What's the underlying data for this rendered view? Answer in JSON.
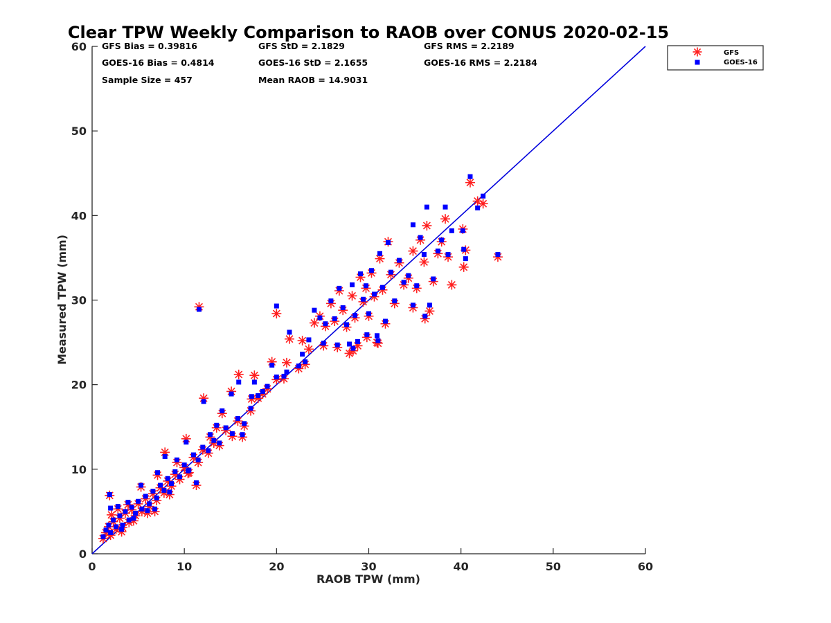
{
  "colors": {
    "gfs": "#ff1f1f",
    "goes16": "#0000ff",
    "reference_line": "#0000dd",
    "axis": "#262626"
  },
  "stats": [
    {
      "id": "gfs-bias",
      "text": "GFS Bias = 0.39816"
    },
    {
      "id": "gfs-std",
      "text": "GFS StD = 2.1829"
    },
    {
      "id": "gfs-rms",
      "text": "GFS RMS = 2.2189"
    },
    {
      "id": "goes16-bias",
      "text": "GOES-16 Bias = 0.4814"
    },
    {
      "id": "goes16-std",
      "text": "GOES-16 StD = 2.1655"
    },
    {
      "id": "goes16-rms",
      "text": "GOES-16 RMS = 2.2184"
    },
    {
      "id": "sample-size",
      "text": "Sample Size = 457"
    },
    {
      "id": "mean-raob",
      "text": "Mean RAOB = 14.9031"
    }
  ],
  "chart_data": {
    "type": "scatter",
    "title": "Clear TPW Weekly Comparison to RAOB over CONUS 2020-02-15",
    "xlabel": "RAOB TPW (mm)",
    "ylabel": "Measured TPW (mm)",
    "xlim": [
      0,
      60
    ],
    "ylim": [
      0,
      60
    ],
    "xticks": [
      0,
      10,
      20,
      30,
      40,
      50,
      60
    ],
    "yticks": [
      0,
      10,
      20,
      30,
      40,
      50,
      60
    ],
    "grid": false,
    "legend_position": "top-right outside",
    "reference_line": {
      "name": "1:1",
      "points": [
        [
          0,
          0
        ],
        [
          60,
          60
        ]
      ]
    },
    "series": [
      {
        "name": "GFS",
        "marker": "asterisk",
        "points": [
          [
            1.2,
            1.8
          ],
          [
            1.5,
            2.5
          ],
          [
            1.8,
            3.2
          ],
          [
            2.0,
            2.2
          ],
          [
            2.3,
            3.8
          ],
          [
            2.6,
            2.9
          ],
          [
            3.0,
            4.2
          ],
          [
            3.3,
            3.1
          ],
          [
            3.6,
            4.8
          ],
          [
            4.0,
            3.7
          ],
          [
            4.3,
            5.2
          ],
          [
            4.7,
            4.5
          ],
          [
            5.0,
            5.9
          ],
          [
            5.4,
            5.0
          ],
          [
            5.8,
            6.5
          ],
          [
            6.2,
            5.6
          ],
          [
            6.6,
            7.1
          ],
          [
            7.0,
            6.3
          ],
          [
            7.4,
            7.8
          ],
          [
            7.8,
            7.2
          ],
          [
            8.2,
            8.6
          ],
          [
            8.6,
            8.0
          ],
          [
            9.0,
            9.4
          ],
          [
            9.5,
            8.8
          ],
          [
            10.0,
            10.2
          ],
          [
            10.5,
            9.6
          ],
          [
            11.0,
            11.4
          ],
          [
            11.5,
            10.8
          ],
          [
            12.0,
            12.3
          ],
          [
            12.6,
            11.9
          ],
          [
            13.2,
            13.1
          ],
          [
            13.8,
            12.8
          ],
          [
            14.5,
            14.6
          ],
          [
            15.2,
            13.9
          ],
          [
            15.8,
            15.7
          ],
          [
            16.5,
            15.1
          ],
          [
            17.2,
            16.9
          ],
          [
            18.0,
            18.4
          ],
          [
            19.0,
            19.5
          ],
          [
            20.0,
            20.6
          ],
          [
            1.9,
            6.9
          ],
          [
            2.1,
            4.6
          ],
          [
            2.8,
            5.3
          ],
          [
            3.2,
            2.6
          ],
          [
            3.9,
            5.8
          ],
          [
            4.5,
            3.9
          ],
          [
            5.3,
            7.9
          ],
          [
            6.0,
            4.8
          ],
          [
            6.8,
            5.0
          ],
          [
            7.1,
            9.3
          ],
          [
            7.9,
            12.0
          ],
          [
            8.4,
            7.0
          ],
          [
            9.2,
            10.8
          ],
          [
            10.2,
            13.6
          ],
          [
            10.4,
            9.5
          ],
          [
            11.3,
            8.1
          ],
          [
            11.6,
            29.2
          ],
          [
            12.1,
            18.4
          ],
          [
            12.8,
            13.8
          ],
          [
            13.5,
            14.9
          ],
          [
            14.1,
            16.6
          ],
          [
            15.1,
            19.2
          ],
          [
            15.9,
            21.2
          ],
          [
            16.3,
            13.8
          ],
          [
            17.3,
            18.3
          ],
          [
            17.6,
            21.1
          ],
          [
            18.5,
            18.9
          ],
          [
            19.5,
            22.7
          ],
          [
            20.0,
            28.4
          ],
          [
            20.8,
            20.7
          ],
          [
            21.1,
            22.6
          ],
          [
            21.4,
            25.4
          ],
          [
            22.8,
            25.2
          ],
          [
            23.1,
            22.4
          ],
          [
            23.5,
            24.2
          ],
          [
            24.1,
            27.3
          ],
          [
            24.7,
            28.1
          ],
          [
            25.3,
            26.9
          ],
          [
            25.9,
            29.6
          ],
          [
            26.3,
            27.5
          ],
          [
            26.8,
            31.1
          ],
          [
            27.2,
            28.8
          ],
          [
            27.6,
            26.8
          ],
          [
            27.9,
            23.7
          ],
          [
            28.2,
            30.5
          ],
          [
            28.5,
            27.9
          ],
          [
            28.8,
            24.6
          ],
          [
            29.1,
            32.7
          ],
          [
            29.4,
            29.8
          ],
          [
            29.7,
            31.4
          ],
          [
            30.0,
            28.1
          ],
          [
            30.3,
            33.2
          ],
          [
            30.6,
            30.4
          ],
          [
            30.9,
            25.0
          ],
          [
            31.2,
            34.9
          ],
          [
            31.5,
            31.2
          ],
          [
            31.8,
            27.2
          ],
          [
            32.1,
            36.9
          ],
          [
            32.4,
            33.0
          ],
          [
            32.8,
            29.6
          ],
          [
            33.3,
            34.4
          ],
          [
            33.8,
            31.8
          ],
          [
            34.3,
            32.6
          ],
          [
            34.8,
            35.8
          ],
          [
            35.2,
            31.4
          ],
          [
            35.6,
            37.1
          ],
          [
            36.0,
            34.5
          ],
          [
            36.3,
            38.8
          ],
          [
            36.6,
            28.7
          ],
          [
            37.0,
            32.2
          ],
          [
            37.5,
            35.5
          ],
          [
            37.9,
            36.9
          ],
          [
            38.3,
            39.6
          ],
          [
            38.6,
            35.1
          ],
          [
            39.0,
            31.8
          ],
          [
            40.2,
            38.4
          ],
          [
            40.3,
            33.9
          ],
          [
            40.5,
            35.9
          ],
          [
            41.0,
            43.9
          ],
          [
            41.8,
            41.7
          ],
          [
            42.4,
            41.4
          ],
          [
            44.0,
            35.1
          ],
          [
            28.3,
            24.0
          ],
          [
            29.8,
            25.6
          ],
          [
            31.0,
            24.9
          ],
          [
            34.8,
            29.1
          ],
          [
            36.1,
            27.8
          ],
          [
            26.6,
            24.4
          ],
          [
            25.1,
            24.6
          ],
          [
            22.4,
            21.9
          ]
        ]
      },
      {
        "name": "GOES-16",
        "marker": "square",
        "points": [
          [
            1.2,
            2.0
          ],
          [
            1.5,
            2.8
          ],
          [
            1.8,
            3.4
          ],
          [
            2.0,
            2.5
          ],
          [
            2.3,
            4.0
          ],
          [
            2.6,
            3.2
          ],
          [
            3.0,
            4.5
          ],
          [
            3.3,
            3.4
          ],
          [
            3.6,
            5.0
          ],
          [
            4.0,
            4.0
          ],
          [
            4.3,
            5.5
          ],
          [
            4.7,
            4.8
          ],
          [
            5.0,
            6.2
          ],
          [
            5.4,
            5.3
          ],
          [
            5.8,
            6.8
          ],
          [
            6.2,
            5.9
          ],
          [
            6.6,
            7.4
          ],
          [
            7.0,
            6.6
          ],
          [
            7.4,
            8.1
          ],
          [
            7.8,
            7.5
          ],
          [
            8.2,
            8.9
          ],
          [
            8.6,
            8.3
          ],
          [
            9.0,
            9.7
          ],
          [
            9.5,
            9.1
          ],
          [
            10.0,
            10.5
          ],
          [
            10.5,
            9.9
          ],
          [
            11.0,
            11.7
          ],
          [
            11.5,
            11.1
          ],
          [
            12.0,
            12.6
          ],
          [
            12.6,
            12.2
          ],
          [
            13.2,
            13.4
          ],
          [
            13.8,
            13.1
          ],
          [
            14.5,
            14.9
          ],
          [
            15.2,
            14.2
          ],
          [
            15.8,
            16.0
          ],
          [
            16.5,
            15.4
          ],
          [
            17.2,
            17.2
          ],
          [
            18.0,
            18.7
          ],
          [
            19.0,
            19.8
          ],
          [
            20.0,
            20.9
          ],
          [
            1.9,
            7.0
          ],
          [
            2.0,
            5.4
          ],
          [
            2.8,
            5.6
          ],
          [
            3.2,
            2.9
          ],
          [
            3.9,
            6.1
          ],
          [
            4.5,
            4.2
          ],
          [
            5.3,
            8.1
          ],
          [
            6.0,
            5.1
          ],
          [
            6.8,
            5.3
          ],
          [
            7.1,
            9.6
          ],
          [
            7.9,
            11.5
          ],
          [
            8.4,
            7.3
          ],
          [
            9.2,
            11.1
          ],
          [
            10.2,
            13.2
          ],
          [
            10.4,
            9.8
          ],
          [
            11.3,
            8.4
          ],
          [
            11.6,
            28.9
          ],
          [
            12.1,
            18.0
          ],
          [
            12.8,
            14.1
          ],
          [
            13.5,
            15.2
          ],
          [
            14.1,
            16.9
          ],
          [
            15.1,
            18.9
          ],
          [
            15.9,
            20.3
          ],
          [
            16.3,
            14.1
          ],
          [
            17.3,
            18.6
          ],
          [
            17.6,
            20.3
          ],
          [
            18.5,
            19.2
          ],
          [
            19.5,
            22.3
          ],
          [
            20.0,
            29.3
          ],
          [
            20.8,
            21.0
          ],
          [
            21.1,
            21.5
          ],
          [
            21.4,
            26.2
          ],
          [
            22.8,
            23.6
          ],
          [
            23.1,
            22.7
          ],
          [
            23.5,
            25.3
          ],
          [
            24.1,
            28.8
          ],
          [
            24.7,
            27.9
          ],
          [
            25.3,
            27.2
          ],
          [
            25.9,
            29.9
          ],
          [
            26.3,
            27.8
          ],
          [
            26.8,
            31.4
          ],
          [
            27.2,
            29.1
          ],
          [
            27.6,
            27.1
          ],
          [
            27.9,
            24.8
          ],
          [
            28.2,
            31.8
          ],
          [
            28.5,
            28.2
          ],
          [
            28.8,
            25.1
          ],
          [
            29.1,
            33.1
          ],
          [
            29.4,
            30.1
          ],
          [
            29.7,
            31.7
          ],
          [
            30.0,
            28.4
          ],
          [
            30.3,
            33.5
          ],
          [
            30.6,
            30.7
          ],
          [
            30.9,
            25.8
          ],
          [
            31.2,
            35.5
          ],
          [
            31.5,
            31.5
          ],
          [
            31.8,
            27.5
          ],
          [
            32.1,
            36.8
          ],
          [
            32.4,
            33.3
          ],
          [
            32.8,
            29.9
          ],
          [
            33.3,
            34.7
          ],
          [
            33.8,
            32.1
          ],
          [
            34.3,
            32.9
          ],
          [
            34.8,
            38.9
          ],
          [
            35.2,
            31.7
          ],
          [
            35.6,
            37.4
          ],
          [
            36.0,
            35.4
          ],
          [
            36.3,
            41.0
          ],
          [
            36.6,
            29.4
          ],
          [
            37.0,
            32.5
          ],
          [
            37.5,
            35.8
          ],
          [
            37.9,
            37.1
          ],
          [
            38.3,
            41.0
          ],
          [
            38.6,
            35.4
          ],
          [
            39.0,
            38.2
          ],
          [
            40.2,
            38.2
          ],
          [
            40.3,
            36.0
          ],
          [
            40.5,
            34.9
          ],
          [
            41.0,
            44.6
          ],
          [
            41.8,
            40.9
          ],
          [
            42.4,
            42.3
          ],
          [
            44.0,
            35.4
          ],
          [
            28.3,
            24.3
          ],
          [
            29.8,
            25.9
          ],
          [
            31.0,
            25.2
          ],
          [
            34.8,
            29.4
          ],
          [
            36.1,
            28.1
          ],
          [
            26.6,
            24.7
          ],
          [
            25.1,
            24.9
          ],
          [
            22.4,
            22.2
          ]
        ]
      }
    ]
  }
}
